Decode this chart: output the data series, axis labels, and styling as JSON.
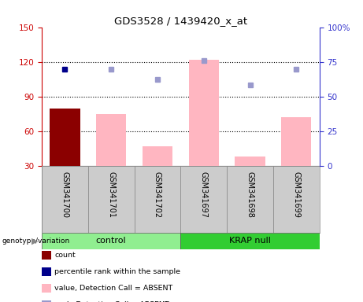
{
  "title": "GDS3528 / 1439420_x_at",
  "samples": [
    "GSM341700",
    "GSM341701",
    "GSM341702",
    "GSM341697",
    "GSM341698",
    "GSM341699"
  ],
  "bar_values": [
    80,
    75,
    47,
    122,
    38,
    72
  ],
  "bar_colors": [
    "#8B0000",
    "#FFB6C1",
    "#FFB6C1",
    "#FFB6C1",
    "#FFB6C1",
    "#FFB6C1"
  ],
  "blue_squares": [
    114,
    null,
    null,
    null,
    null,
    null
  ],
  "lavender_squares": [
    null,
    114,
    105,
    121,
    100,
    114
  ],
  "ylim_left": [
    30,
    150
  ],
  "ylim_right": [
    0,
    100
  ],
  "yticks_left": [
    30,
    60,
    90,
    120,
    150
  ],
  "yticks_right": [
    0,
    25,
    50,
    75,
    100
  ],
  "grid_lines": [
    60,
    90,
    120
  ],
  "left_axis_color": "#CC0000",
  "right_axis_color": "#3333CC",
  "bar_bottom": 30,
  "background_color": "#FFFFFF",
  "legend_labels": [
    "count",
    "percentile rank within the sample",
    "value, Detection Call = ABSENT",
    "rank, Detection Call = ABSENT"
  ],
  "legend_colors": [
    "#8B0000",
    "#00008B",
    "#FFB6C1",
    "#9999CC"
  ]
}
